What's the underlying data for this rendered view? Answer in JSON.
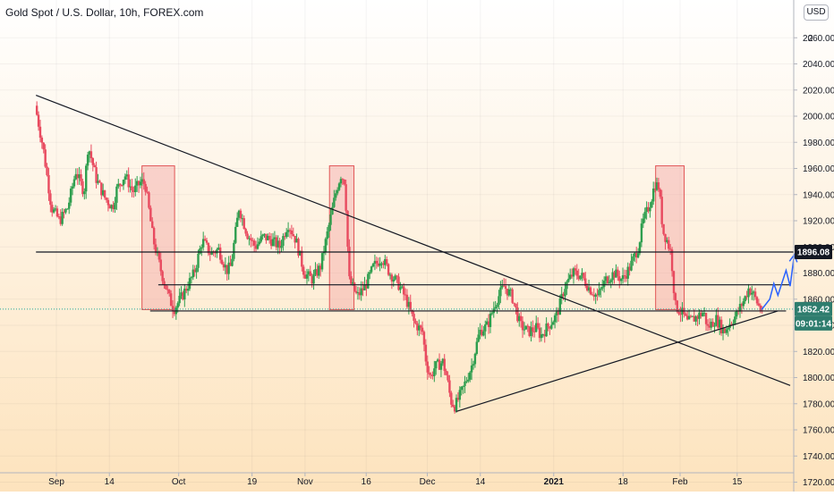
{
  "header": {
    "title": "Gold Spot / U.S. Dollar, 10h, FOREX.com",
    "currency_button": "USD"
  },
  "colors": {
    "up": "#26a69a",
    "down": "#ef5350",
    "up_body": "#2e9e4e",
    "down_body": "#e84a5f",
    "line": "#131722",
    "projection": "#2962ff",
    "zone_fill": "#f4a6a6",
    "zone_stroke": "#e05555",
    "bg_top": "#ffffff",
    "bg_bottom": "#fde3bd"
  },
  "chart_data": {
    "type": "candlestick",
    "symbol": "Gold Spot / U.S. Dollar",
    "interval": "10h",
    "source": "FOREX.com",
    "ylim": [
      1708,
      2088
    ],
    "y_ticks": [
      1720,
      1740,
      1760,
      1780,
      1800,
      1820,
      1840,
      1860,
      1880,
      1900,
      1920,
      1940,
      1960,
      1980,
      2000,
      2020,
      2040,
      2060
    ],
    "top_tick_partial": "2",
    "x_ticks": [
      {
        "label": "Sep",
        "date": "2020-09-01"
      },
      {
        "label": "14",
        "date": "2020-09-14"
      },
      {
        "label": "Oct",
        "date": "2020-10-01"
      },
      {
        "label": "19",
        "date": "2020-10-19"
      },
      {
        "label": "Nov",
        "date": "2020-11-01"
      },
      {
        "label": "16",
        "date": "2020-11-16"
      },
      {
        "label": "Dec",
        "date": "2020-12-01"
      },
      {
        "label": "14",
        "date": "2020-12-14"
      },
      {
        "label": "2021",
        "date": "2021-01-01",
        "bold": true
      },
      {
        "label": "18",
        "date": "2021-01-18"
      },
      {
        "label": "Feb",
        "date": "2021-02-01"
      },
      {
        "label": "15",
        "date": "2021-02-15"
      }
    ],
    "price_path": [
      [
        "2020-08-27",
        2008
      ],
      [
        "2020-08-29",
        1975
      ],
      [
        "2020-08-31",
        1930
      ],
      [
        "2020-09-02",
        1920
      ],
      [
        "2020-09-04",
        1930
      ],
      [
        "2020-09-06",
        1958
      ],
      [
        "2020-09-08",
        1942
      ],
      [
        "2020-09-09",
        1978
      ],
      [
        "2020-09-11",
        1952
      ],
      [
        "2020-09-13",
        1938
      ],
      [
        "2020-09-15",
        1930
      ],
      [
        "2020-09-16",
        1944
      ],
      [
        "2020-09-18",
        1955
      ],
      [
        "2020-09-20",
        1942
      ],
      [
        "2020-09-22",
        1950
      ],
      [
        "2020-09-23",
        1948
      ],
      [
        "2020-09-25",
        1905
      ],
      [
        "2020-09-27",
        1880
      ],
      [
        "2020-09-29",
        1860
      ],
      [
        "2020-09-30",
        1852
      ],
      [
        "2020-10-02",
        1862
      ],
      [
        "2020-10-03",
        1868
      ],
      [
        "2020-10-05",
        1880
      ],
      [
        "2020-10-07",
        1905
      ],
      [
        "2020-10-09",
        1895
      ],
      [
        "2020-10-11",
        1898
      ],
      [
        "2020-10-13",
        1882
      ],
      [
        "2020-10-14",
        1885
      ],
      [
        "2020-10-16",
        1930
      ],
      [
        "2020-10-18",
        1910
      ],
      [
        "2020-10-20",
        1900
      ],
      [
        "2020-10-22",
        1908
      ],
      [
        "2020-10-24",
        1905
      ],
      [
        "2020-10-26",
        1900
      ],
      [
        "2020-10-28",
        1918
      ],
      [
        "2020-10-30",
        1905
      ],
      [
        "2020-11-01",
        1880
      ],
      [
        "2020-11-03",
        1875
      ],
      [
        "2020-11-05",
        1885
      ],
      [
        "2020-11-07",
        1915
      ],
      [
        "2020-11-09",
        1945
      ],
      [
        "2020-11-10",
        1955
      ],
      [
        "2020-11-11",
        1950
      ],
      [
        "2020-11-12",
        1875
      ],
      [
        "2020-11-14",
        1862
      ],
      [
        "2020-11-16",
        1870
      ],
      [
        "2020-11-18",
        1885
      ],
      [
        "2020-11-20",
        1892
      ],
      [
        "2020-11-22",
        1880
      ],
      [
        "2020-11-24",
        1872
      ],
      [
        "2020-11-26",
        1860
      ],
      [
        "2020-11-28",
        1842
      ],
      [
        "2020-11-30",
        1835
      ],
      [
        "2020-12-01",
        1810
      ],
      [
        "2020-12-02",
        1800
      ],
      [
        "2020-12-03",
        1808
      ],
      [
        "2020-12-05",
        1812
      ],
      [
        "2020-12-06",
        1800
      ],
      [
        "2020-12-07",
        1782
      ],
      [
        "2020-12-08",
        1778
      ],
      [
        "2020-12-10",
        1792
      ],
      [
        "2020-12-12",
        1808
      ],
      [
        "2020-12-14",
        1835
      ],
      [
        "2020-12-16",
        1840
      ],
      [
        "2020-12-18",
        1858
      ],
      [
        "2020-12-20",
        1870
      ],
      [
        "2020-12-22",
        1862
      ],
      [
        "2020-12-24",
        1840
      ],
      [
        "2020-12-26",
        1835
      ],
      [
        "2020-12-28",
        1838
      ],
      [
        "2020-12-29",
        1832
      ],
      [
        "2020-12-31",
        1840
      ],
      [
        "2021-01-02",
        1848
      ],
      [
        "2021-01-04",
        1870
      ],
      [
        "2021-01-06",
        1880
      ],
      [
        "2021-01-08",
        1878
      ],
      [
        "2021-01-10",
        1868
      ],
      [
        "2021-01-12",
        1862
      ],
      [
        "2021-01-14",
        1875
      ],
      [
        "2021-01-16",
        1880
      ],
      [
        "2021-01-18",
        1875
      ],
      [
        "2021-01-20",
        1885
      ],
      [
        "2021-01-22",
        1900
      ],
      [
        "2021-01-23",
        1918
      ],
      [
        "2021-01-25",
        1935
      ],
      [
        "2021-01-26",
        1948
      ],
      [
        "2021-01-27",
        1946
      ],
      [
        "2021-01-28",
        1912
      ],
      [
        "2021-01-29",
        1905
      ],
      [
        "2021-01-30",
        1895
      ],
      [
        "2021-01-31",
        1855
      ],
      [
        "2021-02-02",
        1848
      ],
      [
        "2021-02-03",
        1842
      ],
      [
        "2021-02-05",
        1846
      ],
      [
        "2021-02-07",
        1850
      ],
      [
        "2021-02-08",
        1838
      ],
      [
        "2021-02-10",
        1845
      ],
      [
        "2021-02-12",
        1835
      ],
      [
        "2021-02-13",
        1840
      ],
      [
        "2021-02-15",
        1848
      ],
      [
        "2021-02-17",
        1860
      ],
      [
        "2021-02-18",
        1868
      ],
      [
        "2021-02-19",
        1865
      ],
      [
        "2021-02-20",
        1858
      ],
      [
        "2021-02-21",
        1852
      ]
    ],
    "current_price": 1852.42,
    "countdown": "09:01:14",
    "level_label": 1896.08,
    "horizontal_lines": [
      {
        "name": "resistance-line",
        "price": 1896.08,
        "start": "2020-08-27",
        "end": "2021-03-06"
      },
      {
        "name": "middle-line",
        "price": 1871,
        "start": "2020-09-26",
        "end": "2021-02-28"
      },
      {
        "name": "support-line",
        "price": 1851,
        "start": "2020-09-24",
        "end": "2021-02-27"
      }
    ],
    "trendlines": [
      {
        "name": "descending-trendline",
        "from": [
          "2020-08-27",
          2016
        ],
        "to": [
          "2021-02-28",
          1794
        ]
      },
      {
        "name": "ascending-trendline",
        "from": [
          "2020-12-08",
          1774
        ],
        "to": [
          "2021-02-25",
          1851
        ]
      }
    ],
    "zones": [
      {
        "name": "zone-1",
        "start": "2020-09-22",
        "end": "2020-09-30",
        "low": 1852,
        "high": 1962
      },
      {
        "name": "zone-2",
        "start": "2020-11-07",
        "end": "2020-11-13",
        "low": 1852,
        "high": 1962
      },
      {
        "name": "zone-3",
        "start": "2021-01-26",
        "end": "2021-02-02",
        "low": 1852,
        "high": 1962
      }
    ],
    "projection_path": [
      [
        "2021-02-21",
        1852
      ],
      [
        "2021-02-23",
        1860
      ],
      [
        "2021-02-24",
        1872
      ],
      [
        "2021-02-25",
        1863
      ],
      [
        "2021-02-27",
        1882
      ],
      [
        "2021-02-28",
        1870
      ],
      [
        "2021-03-01",
        1894
      ]
    ]
  }
}
